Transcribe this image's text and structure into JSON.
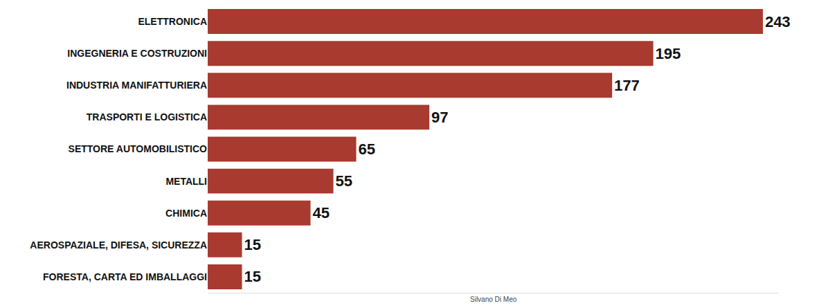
{
  "chart_data": {
    "type": "bar",
    "orientation": "horizontal",
    "categories": [
      "ELETTRONICA",
      "INGEGNERIA E COSTRUZIONI",
      "INDUSTRIA MANIFATTURIERA",
      "TRASPORTI E LOGISTICA",
      "SETTORE AUTOMOBILISTICO",
      "METALLI",
      "CHIMICA",
      "AEROSPAZIALE, DIFESA, SICUREZZA",
      "FORESTA, CARTA ED IMBALLAGGI"
    ],
    "values": [
      243,
      195,
      177,
      97,
      65,
      55,
      45,
      15,
      15
    ],
    "color": "#a83a2f",
    "xlim": [
      0,
      250
    ],
    "data_labels": true,
    "tick_labels": "y",
    "grid": false,
    "annotations": [
      "Silvano Di Meo"
    ]
  }
}
